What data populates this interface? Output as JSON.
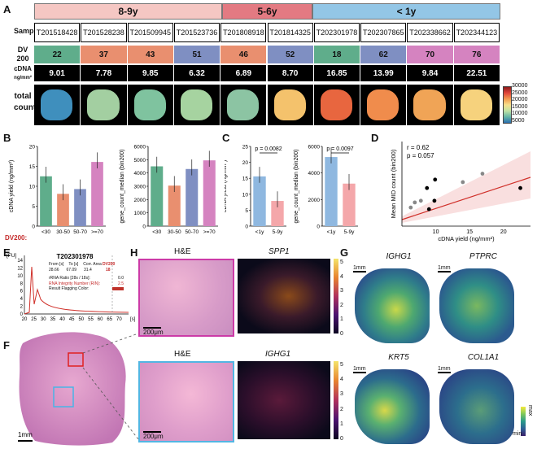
{
  "panels": {
    "a": "A",
    "b": "B",
    "c": "C",
    "d": "D",
    "e": "E",
    "f": "F",
    "g": "G",
    "h": "H"
  },
  "groups": [
    {
      "label": "8-9y",
      "color": "#f5c7c3"
    },
    {
      "label": "5-6y",
      "color": "#e37a82"
    },
    {
      "label": "< 1y",
      "color": "#93c6e6"
    }
  ],
  "rows": {
    "sample": "Sample",
    "dv": "DV 200",
    "cdna_top": "cDNA",
    "cdna_unit": "ng/mm²",
    "counts": "total counts"
  },
  "samples": [
    "T201518428",
    "T201528238",
    "T201509945",
    "T201523736",
    "T201808918",
    "T201814325",
    "T202301978",
    "T202307865",
    "T202338662",
    "T202344123"
  ],
  "dv200": [
    "22",
    "37",
    "43",
    "51",
    "46",
    "52",
    "18",
    "62",
    "70",
    "76"
  ],
  "dv_colors": [
    "#5fad8b",
    "#e98f6f",
    "#e98f6f",
    "#7f8fc2",
    "#e98f6f",
    "#7f8fc2",
    "#5fad8b",
    "#7f8fc2",
    "#d583c0",
    "#d583c0"
  ],
  "cdna": [
    "9.01",
    "7.78",
    "9.85",
    "6.32",
    "6.89",
    "8.70",
    "16.85",
    "13.99",
    "9.84",
    "22.51"
  ],
  "heat_colors": [
    "#3f8fbd",
    "#a3cfa1",
    "#7fc39f",
    "#a6d3a0",
    "#8cc4a3",
    "#f4c26c",
    "#e8663f",
    "#f08c4c",
    "#f0a456",
    "#f6d27d"
  ],
  "colorbar": {
    "ticks": [
      "30000",
      "25000",
      "20000",
      "15000",
      "10000",
      "5000"
    ]
  },
  "b_left": {
    "ylabel": "cDNA yield (ng/mm²)",
    "yticks": [
      "0",
      "5",
      "10",
      "15",
      "20"
    ],
    "cats": [
      "<30",
      "30-50",
      "50-70",
      ">=70"
    ],
    "values": [
      12.5,
      8.1,
      9.3,
      16.1
    ],
    "colors": [
      "#5fad8b",
      "#e98f6f",
      "#7f8fc2",
      "#d583c0"
    ],
    "dvlabel": "DV200:"
  },
  "b_right": {
    "ylabel": "gene_count_median (bin200)",
    "yticks": [
      "0",
      "1000",
      "2000",
      "3000",
      "4000",
      "5000",
      "6000"
    ],
    "cats": [
      "<30",
      "30-50",
      "50-70",
      ">=70"
    ],
    "values": [
      4500,
      3050,
      4300,
      4950
    ],
    "colors": [
      "#5fad8b",
      "#e98f6f",
      "#7f8fc2",
      "#d583c0"
    ]
  },
  "c_left": {
    "ylabel": "cDNA yield (ng/mm²)",
    "yticks": [
      "0",
      "5",
      "10",
      "15",
      "20",
      "25"
    ],
    "cats": [
      "<1y",
      "5-9y"
    ],
    "values": [
      15.6,
      7.9
    ],
    "colors": [
      "#8fb8e0",
      "#f4a7aa"
    ],
    "pval": "p = 0.0082"
  },
  "c_right": {
    "ylabel": "gene_count_median (bin200)",
    "yticks": [
      "0",
      "2000",
      "4000",
      "6000"
    ],
    "cats": [
      "<1y",
      "5-9y"
    ],
    "values": [
      5200,
      3200
    ],
    "colors": [
      "#8fb8e0",
      "#f4a7aa"
    ],
    "pval": "p = 0.0097"
  },
  "d": {
    "ylabel": "Mean MID count (bin200)",
    "xlabel": "cDNA yield (ng/mm²)",
    "xticks": [
      "10",
      "15",
      "20"
    ],
    "r": "r = 0.62",
    "p": "p = 0.057"
  },
  "e": {
    "title": "T202301978",
    "unit": "[FU]",
    "xunit": "[s]",
    "yticks": [
      "14",
      "12",
      "10",
      "8",
      "6",
      "4",
      "2",
      "0"
    ],
    "xticks": [
      "20",
      "25",
      "30",
      "35",
      "40",
      "45",
      "50",
      "55",
      "60",
      "65",
      "70"
    ],
    "table_head": [
      "From [s]",
      "To [s]",
      "Corr. Area"
    ],
    "table_vals": [
      "28.66",
      "67.09",
      "31.4"
    ],
    "rows": [
      {
        "k": "rRNA Ratio [28s / 18s]:",
        "v": "0.0"
      },
      {
        "k": "RNA Integrity Number (RIN):",
        "v": "2.5"
      },
      {
        "k": "Result Flagging Color:",
        "v": ""
      }
    ],
    "dvhead": "DV200",
    "dvval": "18"
  },
  "f": {
    "scale": "1mm"
  },
  "h": {
    "he": "H&E",
    "spp1": "SPP1",
    "ighg1": "IGHG1",
    "scale": "200μm",
    "cbticks": [
      "5",
      "4",
      "3",
      "2",
      "1",
      "0"
    ]
  },
  "g": {
    "labels": [
      "IGHG1",
      "PTPRC",
      "KRT5",
      "COL1A1"
    ],
    "scale": "1mm",
    "max": "max",
    "min": "min"
  }
}
